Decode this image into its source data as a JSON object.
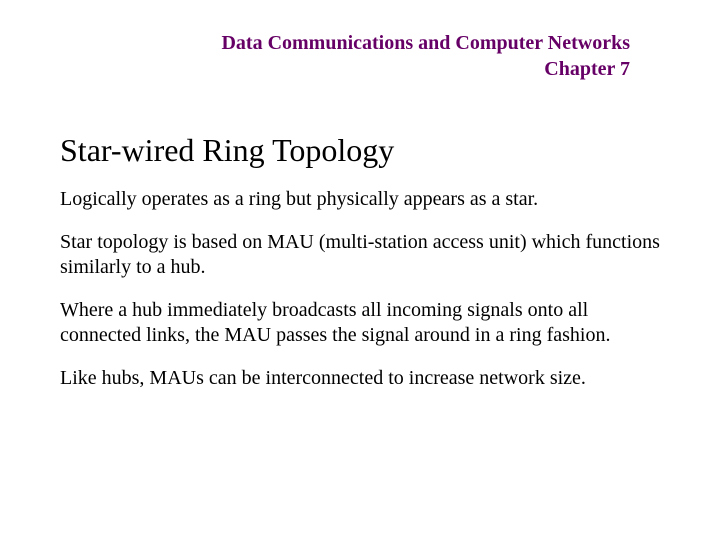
{
  "header": {
    "line1": "Data Communications and Computer Networks",
    "line2": "Chapter 7",
    "color": "#660066",
    "fontsize": 20,
    "fontweight": "bold"
  },
  "title": {
    "text": "Star-wired Ring Topology",
    "fontsize": 32,
    "color": "#000000"
  },
  "paragraphs": {
    "p1": "Logically operates as a ring but physically appears as a star.",
    "p2": "Star topology is based on MAU (multi-station access unit) which functions similarly to a hub.",
    "p3": "Where a hub immediately broadcasts all incoming signals onto all connected links, the MAU passes the signal around in a ring fashion.",
    "p4": "Like hubs, MAUs can be interconnected to increase network size."
  },
  "body_fontsize": 20,
  "body_color": "#000000",
  "background_color": "#ffffff"
}
